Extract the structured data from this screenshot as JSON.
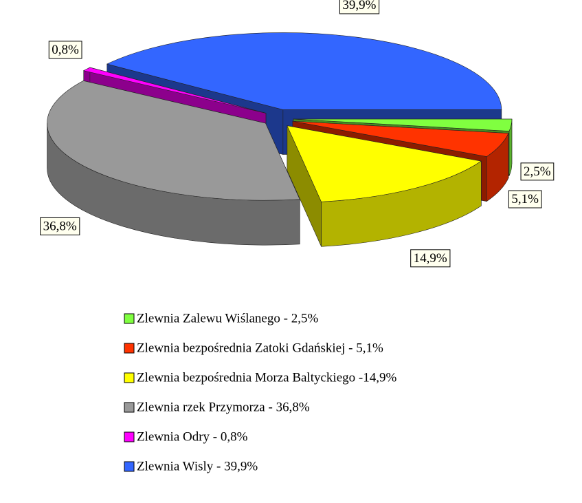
{
  "chart_data": {
    "type": "pie3d",
    "categories": [
      "Zlewnia Zalewu Wiślanego - 2,5%",
      "Zlewnia bezpośrednia Zatoki Gdańskiej - 5,1%",
      "Zlewnia bezpośrednia Morza Baltyckiego -14,9%",
      "Zlewnia rzek Przymorza - 36,8%",
      "Zlewnia Odry - 0,8%",
      "Zlewnia Wisly - 39,9%"
    ],
    "values": [
      2.5,
      5.1,
      14.9,
      36.8,
      0.8,
      39.9
    ],
    "value_labels": [
      "2,5%",
      "5,1%",
      "14,9%",
      "36,8%",
      "0,8%",
      "39,9%"
    ],
    "colors": [
      "#80ff40",
      "#ff3300",
      "#ffff00",
      "#999999",
      "#ff00ff",
      "#3366ff"
    ]
  }
}
